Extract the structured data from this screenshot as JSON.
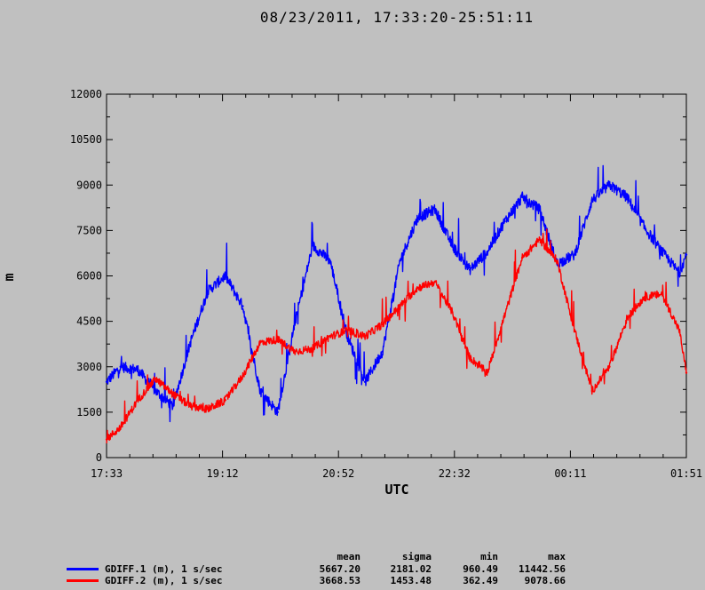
{
  "chart_data": {
    "type": "line",
    "title": "08/23/2011, 17:33:20-25:51:11",
    "xlabel": "UTC",
    "ylabel": "m",
    "ylim": [
      0,
      12000
    ],
    "yticks": [
      "0",
      "1500",
      "3000",
      "4500",
      "6000",
      "7500",
      "9000",
      "10500",
      "12000"
    ],
    "xticks": [
      "17:33",
      "19:12",
      "20:52",
      "22:32",
      "00:11",
      "01:51"
    ],
    "x_hours": [
      17.55,
      17.75,
      18.0,
      18.25,
      18.5,
      18.75,
      19.0,
      19.25,
      19.5,
      19.75,
      20.0,
      20.25,
      20.5,
      20.75,
      21.0,
      21.25,
      21.5,
      21.75,
      22.0,
      22.25,
      22.5,
      22.75,
      23.0,
      23.25,
      23.5,
      23.75,
      24.0,
      24.25,
      24.5,
      24.75,
      25.0,
      25.25,
      25.5,
      25.75,
      25.85
    ],
    "series": [
      {
        "name": "GDIFF.1 (m), 1 s/sec",
        "color": "#0000ff",
        "values": [
          2500,
          3000,
          2900,
          2200,
          1700,
          3800,
          5500,
          6000,
          5000,
          2200,
          1500,
          4500,
          7000,
          6500,
          4000,
          2500,
          3500,
          6500,
          7900,
          8200,
          7000,
          6200,
          6800,
          7800,
          8600,
          8200,
          6400,
          6700,
          8500,
          9000,
          8600,
          7600,
          6800,
          6100,
          6700
        ]
      },
      {
        "name": "GDIFF.2 (m), 1 s/sec",
        "color": "#ff0000",
        "values": [
          600,
          1000,
          1900,
          2600,
          2100,
          1700,
          1600,
          1900,
          2700,
          3800,
          3900,
          3500,
          3600,
          4000,
          4200,
          4000,
          4400,
          5000,
          5600,
          5800,
          4800,
          3300,
          2800,
          4700,
          6600,
          7200,
          6500,
          4200,
          2200,
          3000,
          4600,
          5300,
          5400,
          4200,
          2800
        ]
      }
    ]
  },
  "legend": {
    "headers": {
      "mean": "mean",
      "sigma": "sigma",
      "min": "min",
      "max": "max"
    },
    "rows": [
      {
        "name": "GDIFF.1 (m), 1 s/sec",
        "color": "#0000ff",
        "mean": "5667.20",
        "sigma": "2181.02",
        "min": "960.49",
        "max": "11442.56"
      },
      {
        "name": "GDIFF.2 (m), 1 s/sec",
        "color": "#ff0000",
        "mean": "3668.53",
        "sigma": "1453.48",
        "min": "362.49",
        "max": "9078.66"
      }
    ]
  }
}
